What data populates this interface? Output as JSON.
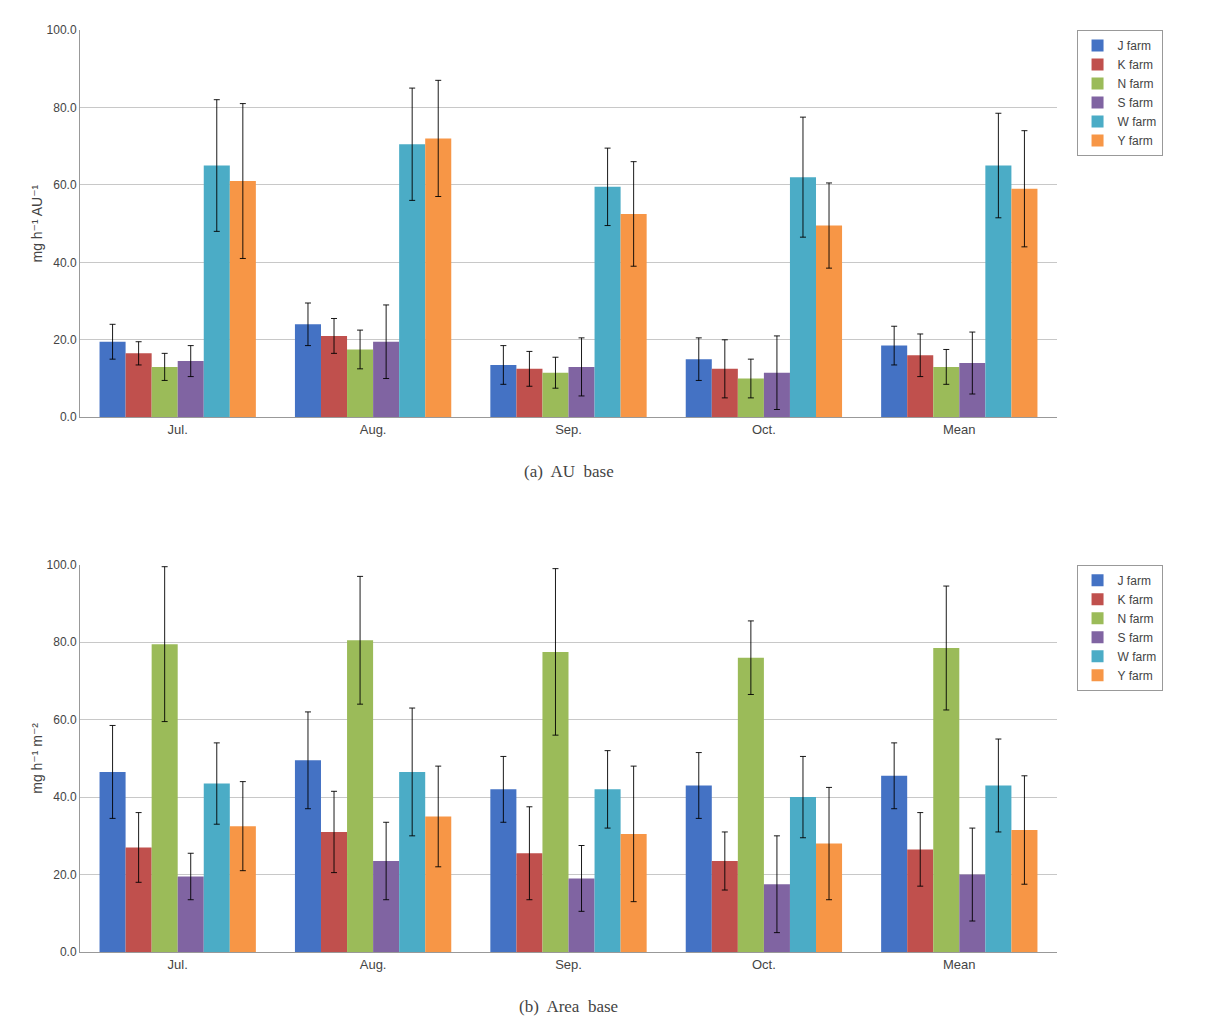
{
  "chart_data": [
    {
      "type": "bar",
      "title": "(a)  AU  base",
      "ylabel": "mg h⁻¹ AU⁻¹",
      "categories": [
        "Jul.",
        "Aug.",
        "Sep.",
        "Oct.",
        "Mean"
      ],
      "series": [
        {
          "name": "J farm",
          "color": "#4472C4",
          "values": [
            19.5,
            24.0,
            13.5,
            15.0,
            18.5
          ],
          "errors": [
            4.5,
            5.5,
            5.0,
            5.5,
            5.0
          ]
        },
        {
          "name": "K farm",
          "color": "#C0504D",
          "values": [
            16.5,
            21.0,
            12.5,
            12.5,
            16.0
          ],
          "errors": [
            3.0,
            4.5,
            4.5,
            7.5,
            5.5
          ]
        },
        {
          "name": "N farm",
          "color": "#9BBB59",
          "values": [
            13.0,
            17.5,
            11.5,
            10.0,
            13.0
          ],
          "errors": [
            3.5,
            5.0,
            4.0,
            5.0,
            4.5
          ]
        },
        {
          "name": "S farm",
          "color": "#8064A2",
          "values": [
            14.5,
            19.5,
            13.0,
            11.5,
            14.0
          ],
          "errors": [
            4.0,
            9.5,
            7.5,
            9.5,
            8.0
          ]
        },
        {
          "name": "W farm",
          "color": "#4BACC6",
          "values": [
            65.0,
            70.5,
            59.5,
            62.0,
            65.0
          ],
          "errors": [
            17.0,
            14.5,
            10.0,
            15.5,
            13.5
          ]
        },
        {
          "name": "Y farm",
          "color": "#F79646",
          "values": [
            61.0,
            72.0,
            52.5,
            49.5,
            59.0
          ],
          "errors": [
            20.0,
            15.0,
            13.5,
            11.0,
            15.0
          ]
        }
      ],
      "ylim": [
        0,
        100
      ],
      "yticks": [
        {
          "value": 0,
          "label": "0.0"
        },
        {
          "value": 20,
          "label": "20.0"
        },
        {
          "value": 40,
          "label": "40.0"
        },
        {
          "value": 60,
          "label": "60.0"
        },
        {
          "value": 80,
          "label": "80.0"
        },
        {
          "value": 100,
          "label": "100.0"
        }
      ],
      "grid": true,
      "legend": "upper right"
    },
    {
      "type": "bar",
      "title": "(b)  Area  base",
      "ylabel": "mg h⁻¹ m⁻²",
      "categories": [
        "Jul.",
        "Aug.",
        "Sep.",
        "Oct.",
        "Mean"
      ],
      "series": [
        {
          "name": "J farm",
          "color": "#4472C4",
          "values": [
            46.5,
            49.5,
            42.0,
            43.0,
            45.5
          ],
          "errors": [
            12.0,
            12.5,
            8.5,
            8.5,
            8.5
          ]
        },
        {
          "name": "K farm",
          "color": "#C0504D",
          "values": [
            27.0,
            31.0,
            25.5,
            23.5,
            26.5
          ],
          "errors": [
            9.0,
            10.5,
            12.0,
            7.5,
            9.5
          ]
        },
        {
          "name": "N farm",
          "color": "#9BBB59",
          "values": [
            79.5,
            80.5,
            77.5,
            76.0,
            78.5
          ],
          "errors": [
            20.0,
            16.5,
            21.5,
            9.5,
            16.0
          ]
        },
        {
          "name": "S farm",
          "color": "#8064A2",
          "values": [
            19.5,
            23.5,
            19.0,
            17.5,
            20.0
          ],
          "errors": [
            6.0,
            10.0,
            8.5,
            12.5,
            12.0
          ]
        },
        {
          "name": "W farm",
          "color": "#4BACC6",
          "values": [
            43.5,
            46.5,
            42.0,
            40.0,
            43.0
          ],
          "errors": [
            10.5,
            16.5,
            10.0,
            10.5,
            12.0
          ]
        },
        {
          "name": "Y farm",
          "color": "#F79646",
          "values": [
            32.5,
            35.0,
            30.5,
            28.0,
            31.5
          ],
          "errors": [
            11.5,
            13.0,
            17.5,
            14.5,
            14.0
          ]
        }
      ],
      "ylim": [
        0,
        100
      ],
      "yticks": [
        {
          "value": 0,
          "label": "0.0"
        },
        {
          "value": 20,
          "label": "20.0"
        },
        {
          "value": 40,
          "label": "40.0"
        },
        {
          "value": 60,
          "label": "60.0"
        },
        {
          "value": 80,
          "label": "80.0"
        },
        {
          "value": 100,
          "label": "100.0"
        }
      ],
      "grid": true,
      "legend": "upper right"
    }
  ]
}
